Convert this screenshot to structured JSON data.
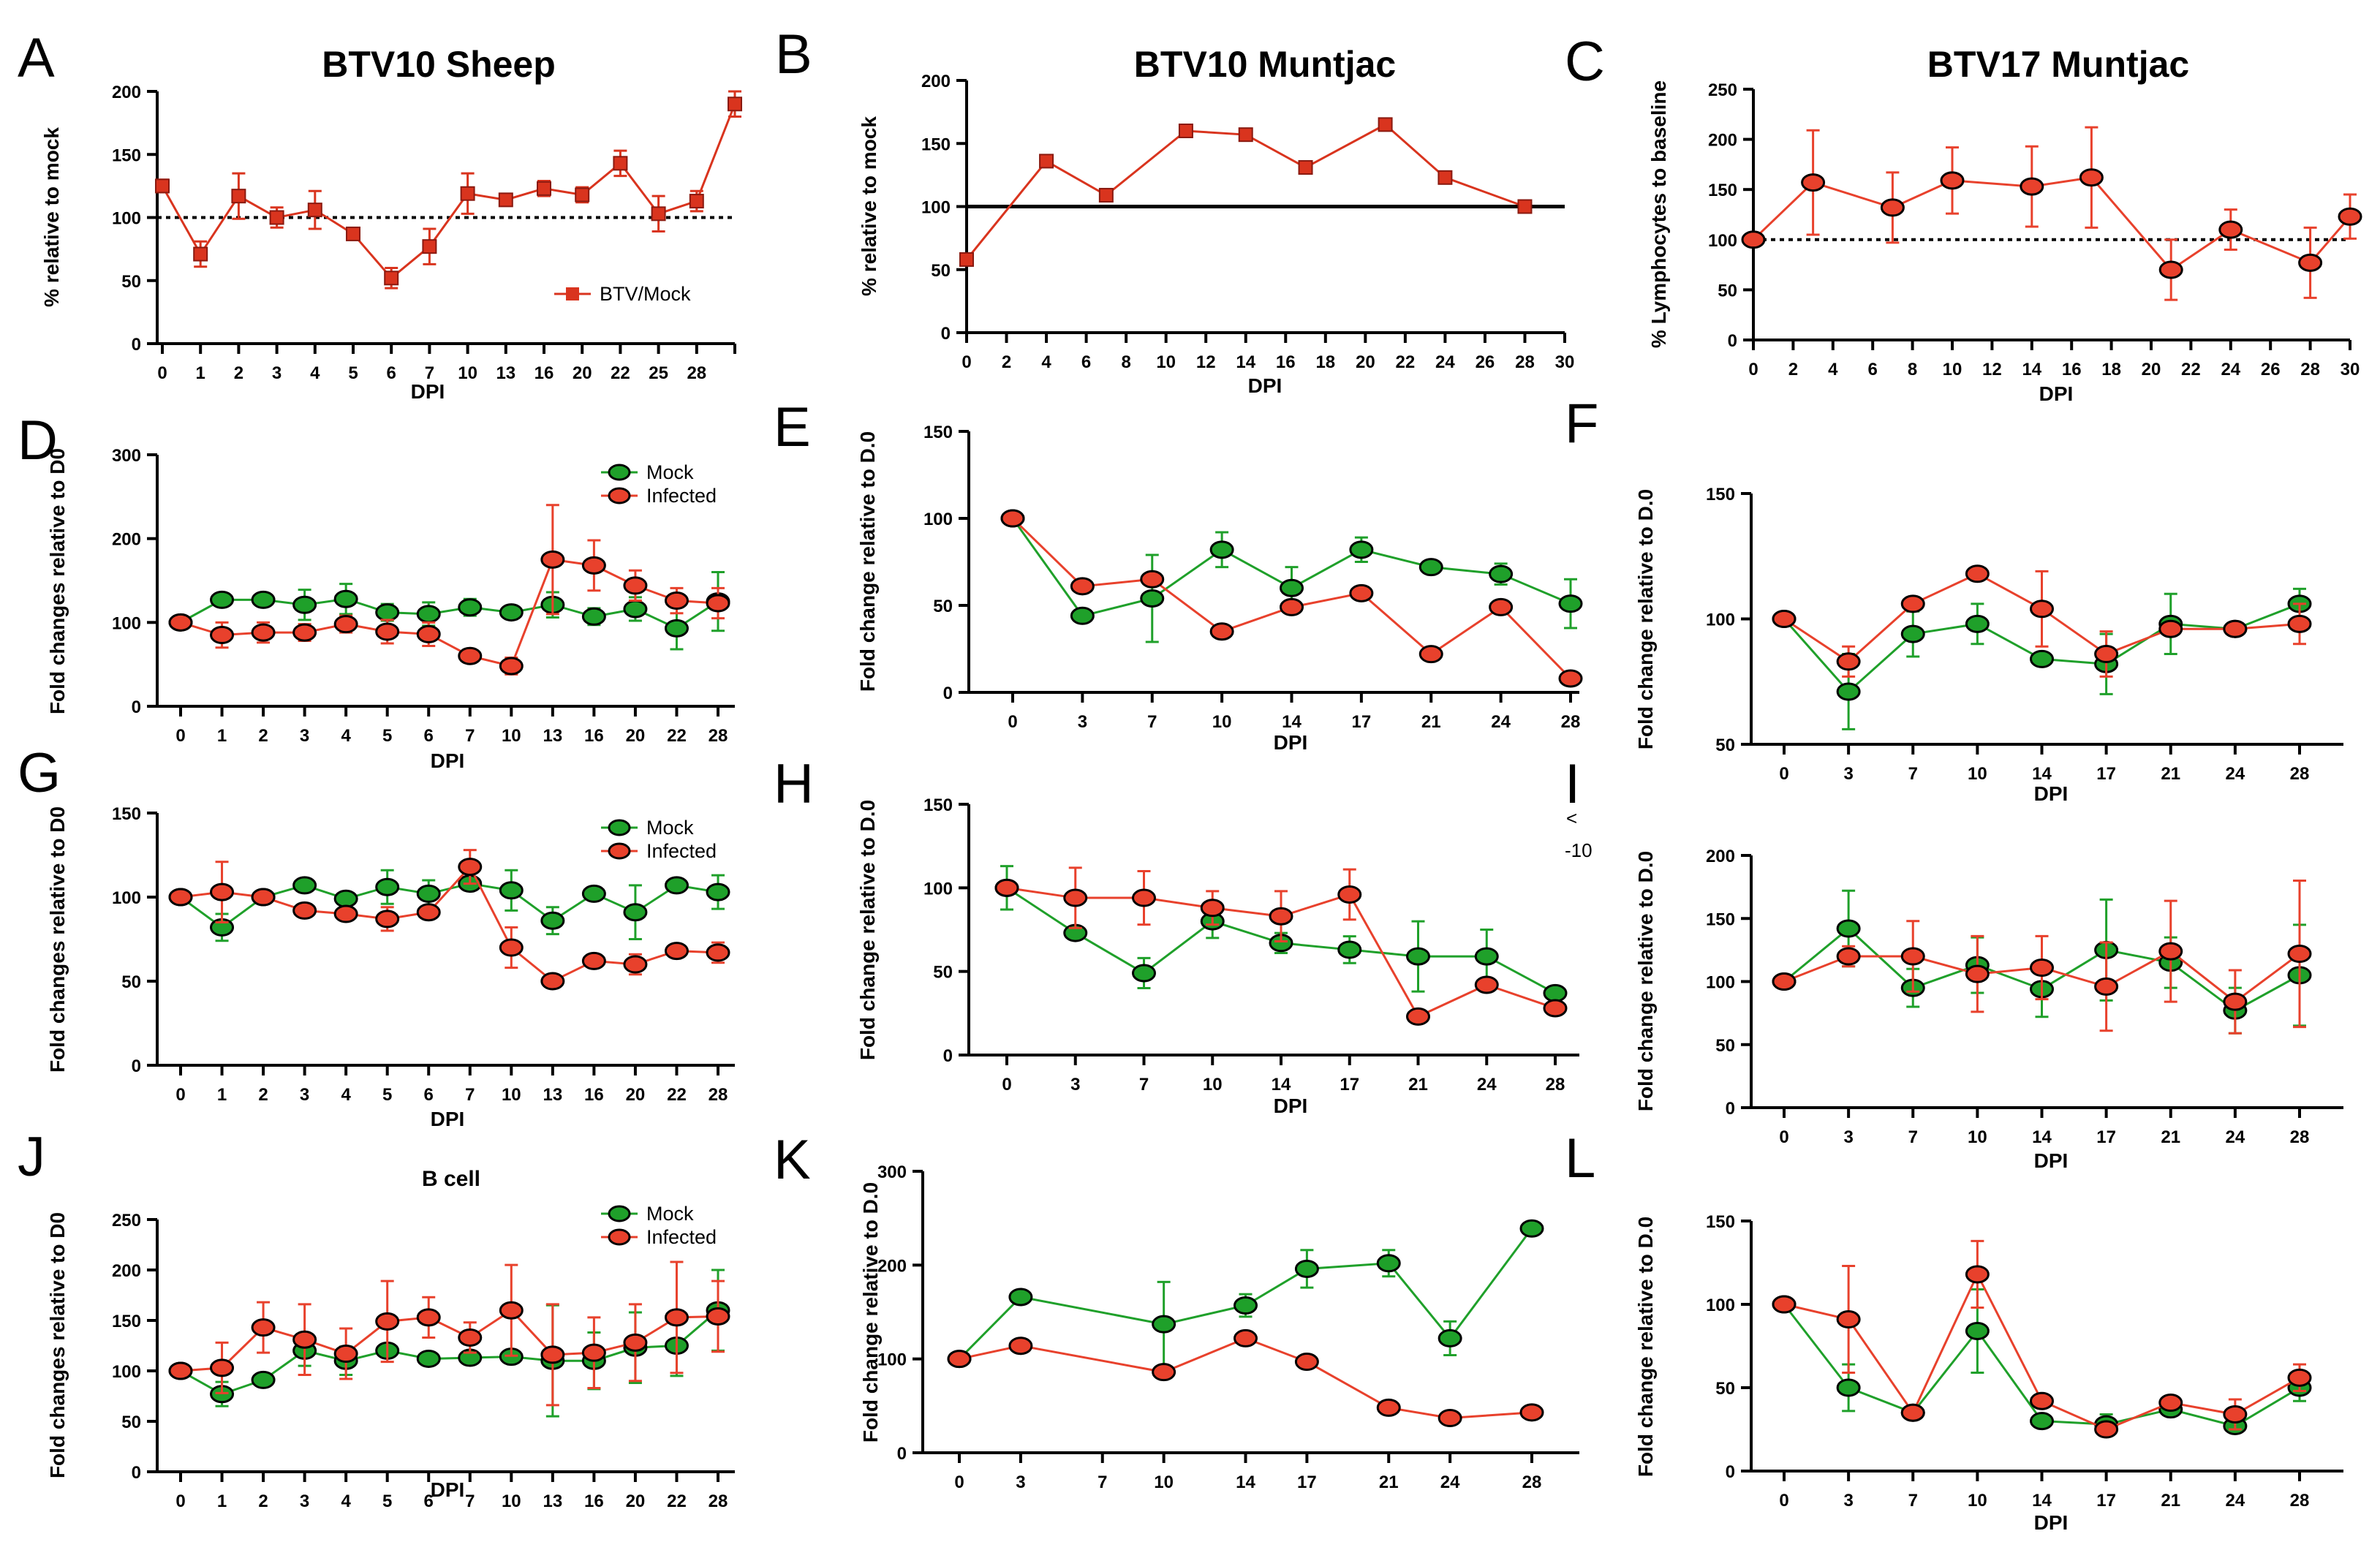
{
  "colors": {
    "infected": "#e8412c",
    "mock": "#1fa02a",
    "sheep_red": "#d9341e",
    "axis": "#000000",
    "ref_line": "#000000"
  },
  "charts": [
    {
      "panel": "A",
      "title": "BTV10 Sheep",
      "subtitle": "",
      "xlabel": "DPI",
      "ylabel": "% relative to mock",
      "x_mode": "category",
      "categories": [
        "0",
        "1",
        "2",
        "3",
        "4",
        "5",
        "6",
        "7",
        "10",
        "13",
        "16",
        "20",
        "22",
        "25",
        "28",
        ""
      ],
      "ylim": [
        0,
        200
      ],
      "yticks": [
        0,
        50,
        100,
        150,
        200
      ],
      "ref_line": {
        "y": 100,
        "style": "dotted"
      },
      "legend": [
        {
          "label": "BTV/Mock",
          "color_key": "sheep_red",
          "marker": "square"
        }
      ],
      "series": [
        {
          "name": "BTV/Mock",
          "color_key": "sheep_red",
          "marker": "square",
          "values": [
            125,
            71,
            117,
            100,
            106,
            87,
            52,
            77,
            119,
            114,
            123,
            118,
            143,
            103,
            113,
            190
          ],
          "errors": [
            5,
            10,
            18,
            8,
            15,
            4,
            8,
            14,
            16,
            4,
            6,
            6,
            10,
            14,
            8,
            10
          ]
        }
      ]
    },
    {
      "panel": "B",
      "title": "BTV10 Muntjac",
      "subtitle": "",
      "xlabel": "DPI",
      "ylabel": "% relative to mock",
      "x_mode": "numeric",
      "xlim": [
        0,
        30
      ],
      "xticks": [
        0,
        2,
        4,
        6,
        8,
        10,
        12,
        14,
        16,
        18,
        20,
        22,
        24,
        26,
        28,
        30
      ],
      "ylim": [
        0,
        200
      ],
      "yticks": [
        0,
        50,
        100,
        150,
        200
      ],
      "ref_line": {
        "y": 100,
        "style": "solid"
      },
      "legend": [],
      "series": [
        {
          "name": "BTV10",
          "color_key": "sheep_red",
          "marker": "square",
          "x": [
            0,
            4,
            7,
            11,
            14,
            17,
            21,
            24,
            28
          ],
          "values": [
            58,
            136,
            109,
            160,
            157,
            131,
            165,
            123,
            100
          ],
          "errors": [
            0,
            0,
            0,
            0,
            0,
            0,
            0,
            0,
            0
          ]
        }
      ]
    },
    {
      "panel": "C",
      "title": "BTV17 Muntjac",
      "subtitle": "",
      "xlabel": "DPI",
      "ylabel": "% Lymphocytes  to baseline",
      "x_mode": "numeric",
      "xlim": [
        0,
        30
      ],
      "xticks": [
        0,
        2,
        4,
        6,
        8,
        10,
        12,
        14,
        16,
        18,
        20,
        22,
        24,
        26,
        28,
        30
      ],
      "ylim": [
        0,
        250
      ],
      "yticks": [
        0,
        50,
        100,
        150,
        200,
        250
      ],
      "ref_line": {
        "y": 100,
        "style": "dotted"
      },
      "legend": [],
      "series": [
        {
          "name": "BTV17",
          "color_key": "infected",
          "marker": "circle",
          "x": [
            0,
            3,
            7,
            10,
            14,
            17,
            21,
            24,
            28,
            30
          ],
          "values": [
            100,
            157,
            132,
            159,
            153,
            162,
            70,
            110,
            77,
            123
          ],
          "errors": [
            0,
            52,
            35,
            33,
            40,
            50,
            30,
            20,
            35,
            22
          ]
        }
      ]
    },
    {
      "panel": "D",
      "title": "",
      "subtitle": "",
      "xlabel": "DPI",
      "ylabel": "Fold changes relative to D0",
      "x_mode": "category",
      "categories": [
        "0",
        "1",
        "2",
        "3",
        "4",
        "5",
        "6",
        "7",
        "10",
        "13",
        "16",
        "20",
        "22",
        "28"
      ],
      "ylim": [
        0,
        300
      ],
      "yticks": [
        0,
        100,
        200,
        300
      ],
      "ref_line": null,
      "legend": [
        {
          "label": "Mock",
          "color_key": "mock",
          "marker": "circle"
        },
        {
          "label": "Infected",
          "color_key": "infected",
          "marker": "circle"
        }
      ],
      "series": [
        {
          "name": "Mock",
          "color_key": "mock",
          "marker": "circle",
          "values": [
            100,
            127,
            127,
            121,
            128,
            112,
            110,
            118,
            112,
            121,
            107,
            116,
            93,
            125
          ],
          "errors": [
            0,
            0,
            0,
            18,
            18,
            10,
            14,
            10,
            8,
            15,
            10,
            14,
            25,
            35
          ]
        },
        {
          "name": "Infected",
          "color_key": "infected",
          "marker": "circle",
          "values": [
            100,
            85,
            88,
            88,
            98,
            89,
            86,
            60,
            48,
            175,
            168,
            144,
            126,
            123
          ],
          "errors": [
            0,
            15,
            12,
            10,
            10,
            14,
            14,
            8,
            10,
            65,
            30,
            18,
            15,
            18
          ]
        }
      ]
    },
    {
      "panel": "E",
      "title": "",
      "subtitle": "",
      "xlabel": "DPI",
      "ylabel": "Fold change relative to D.0",
      "x_mode": "category",
      "categories": [
        "0",
        "3",
        "7",
        "10",
        "14",
        "17",
        "21",
        "24",
        "28"
      ],
      "ylim": [
        0,
        150
      ],
      "yticks": [
        0,
        50,
        100,
        150
      ],
      "ref_line": null,
      "legend": [],
      "series": [
        {
          "name": "Mock",
          "color_key": "mock",
          "marker": "circle",
          "values": [
            100,
            44,
            54,
            82,
            60,
            82,
            72,
            68,
            51
          ],
          "errors": [
            0,
            0,
            25,
            10,
            12,
            7,
            0,
            6,
            14
          ]
        },
        {
          "name": "Infected",
          "color_key": "infected",
          "marker": "circle",
          "values": [
            100,
            61,
            65,
            35,
            49,
            57,
            22,
            49,
            8
          ],
          "errors": [
            0,
            0,
            0,
            0,
            0,
            0,
            0,
            0,
            0
          ]
        }
      ]
    },
    {
      "panel": "F",
      "title": "",
      "subtitle": "",
      "xlabel": "DPI",
      "ylabel": "Fold change relative to D.0",
      "x_mode": "category",
      "categories": [
        "0",
        "3",
        "7",
        "10",
        "14",
        "17",
        "21",
        "24",
        "28"
      ],
      "ylim": [
        50,
        150
      ],
      "yticks": [
        50,
        100,
        150
      ],
      "ref_line": null,
      "legend": [],
      "series": [
        {
          "name": "Mock",
          "color_key": "mock",
          "marker": "circle",
          "values": [
            100,
            71,
            94,
            98,
            84,
            82,
            98,
            96,
            106
          ],
          "errors": [
            0,
            15,
            9,
            8,
            0,
            12,
            12,
            0,
            6
          ]
        },
        {
          "name": "Infected",
          "color_key": "infected",
          "marker": "circle",
          "values": [
            100,
            83,
            106,
            118,
            104,
            86,
            96,
            96,
            98
          ],
          "errors": [
            0,
            6,
            0,
            0,
            15,
            9,
            0,
            0,
            8
          ]
        }
      ]
    },
    {
      "panel": "G",
      "title": "",
      "subtitle": "",
      "xlabel": "DPI",
      "ylabel": "Fold changes relative to D0",
      "x_mode": "category",
      "categories": [
        "0",
        "1",
        "2",
        "3",
        "4",
        "5",
        "6",
        "7",
        "10",
        "13",
        "16",
        "20",
        "22",
        "28"
      ],
      "ylim": [
        0,
        150
      ],
      "yticks": [
        0,
        50,
        100,
        150
      ],
      "ref_line": null,
      "legend": [
        {
          "label": "Mock",
          "color_key": "mock",
          "marker": "circle"
        },
        {
          "label": "Infected",
          "color_key": "infected",
          "marker": "circle"
        }
      ],
      "series": [
        {
          "name": "Mock",
          "color_key": "mock",
          "marker": "circle",
          "values": [
            100,
            82,
            100,
            107,
            99,
            106,
            102,
            108,
            104,
            86,
            102,
            91,
            107,
            103
          ],
          "errors": [
            0,
            8,
            0,
            0,
            0,
            10,
            8,
            0,
            12,
            8,
            0,
            16,
            0,
            10
          ]
        },
        {
          "name": "Infected",
          "color_key": "infected",
          "marker": "circle",
          "values": [
            100,
            103,
            100,
            92,
            90,
            87,
            91,
            118,
            70,
            50,
            62,
            60,
            68,
            67
          ],
          "errors": [
            0,
            18,
            0,
            0,
            0,
            7,
            0,
            10,
            12,
            0,
            0,
            6,
            0,
            6
          ]
        }
      ]
    },
    {
      "panel": "H",
      "title": "",
      "subtitle": "",
      "xlabel": "DPI",
      "ylabel": "Fold change relative to D.0",
      "x_mode": "category",
      "categories": [
        "0",
        "3",
        "7",
        "10",
        "14",
        "17",
        "21",
        "24",
        "28"
      ],
      "ylim": [
        0,
        150
      ],
      "yticks": [
        0,
        50,
        100,
        150
      ],
      "ref_line": null,
      "legend": [],
      "series": [
        {
          "name": "Mock",
          "color_key": "mock",
          "marker": "circle",
          "values": [
            100,
            73,
            49,
            80,
            67,
            63,
            59,
            59,
            37
          ],
          "errors": [
            13,
            0,
            9,
            10,
            6,
            8,
            21,
            16,
            0
          ]
        },
        {
          "name": "Infected",
          "color_key": "infected",
          "marker": "circle",
          "values": [
            100,
            94,
            94,
            88,
            83,
            96,
            23,
            42,
            28
          ],
          "errors": [
            0,
            18,
            16,
            10,
            15,
            15,
            0,
            0,
            0
          ]
        }
      ]
    },
    {
      "panel": "I",
      "title": "",
      "subtitle": "",
      "xlabel": "DPI",
      "ylabel": "Fold change relative to D.0",
      "x_mode": "category",
      "categories": [
        "0",
        "3",
        "7",
        "10",
        "14",
        "17",
        "21",
        "24",
        "28"
      ],
      "ylim": [
        0,
        200
      ],
      "yticks": [
        0,
        50,
        100,
        150,
        200
      ],
      "ref_line": null,
      "legend": [],
      "series": [
        {
          "name": "Mock",
          "color_key": "mock",
          "marker": "circle",
          "values": [
            100,
            142,
            95,
            113,
            94,
            125,
            115,
            77,
            105
          ],
          "errors": [
            0,
            30,
            15,
            22,
            22,
            40,
            20,
            18,
            40
          ]
        },
        {
          "name": "Infected",
          "color_key": "infected",
          "marker": "circle",
          "values": [
            100,
            120,
            120,
            106,
            111,
            96,
            124,
            84,
            122
          ],
          "errors": [
            0,
            8,
            28,
            30,
            25,
            35,
            40,
            25,
            58
          ]
        }
      ]
    },
    {
      "panel": "J",
      "title": "",
      "subtitle": "B cell",
      "xlabel": "DPI",
      "ylabel": "Fold changes relative to D0",
      "x_mode": "category",
      "categories": [
        "0",
        "1",
        "2",
        "3",
        "4",
        "5",
        "6",
        "7",
        "10",
        "13",
        "16",
        "20",
        "22",
        "28"
      ],
      "ylim": [
        0,
        250
      ],
      "yticks": [
        0,
        50,
        100,
        150,
        200,
        250
      ],
      "ref_line": null,
      "legend": [
        {
          "label": "Mock",
          "color_key": "mock",
          "marker": "circle"
        },
        {
          "label": "Infected",
          "color_key": "infected",
          "marker": "circle"
        }
      ],
      "series": [
        {
          "name": "Mock",
          "color_key": "mock",
          "marker": "circle",
          "values": [
            100,
            77,
            91,
            120,
            110,
            120,
            112,
            113,
            114,
            110,
            110,
            123,
            125,
            160
          ],
          "errors": [
            0,
            12,
            0,
            15,
            14,
            0,
            0,
            0,
            0,
            55,
            28,
            35,
            30,
            40
          ]
        },
        {
          "name": "Infected",
          "color_key": "infected",
          "marker": "circle",
          "values": [
            100,
            103,
            143,
            131,
            117,
            149,
            153,
            133,
            160,
            116,
            118,
            128,
            153,
            154
          ],
          "errors": [
            0,
            25,
            25,
            35,
            25,
            40,
            20,
            15,
            45,
            50,
            35,
            38,
            55,
            35
          ]
        }
      ]
    },
    {
      "panel": "K",
      "title": "",
      "subtitle": "",
      "xlabel": "",
      "ylabel": "Fold change relative to D.0",
      "x_mode": "numeric",
      "xlim": [
        0,
        28
      ],
      "xticks": [
        0,
        3,
        7,
        10,
        14,
        17,
        21,
        24,
        28
      ],
      "ylim": [
        0,
        300
      ],
      "yticks": [
        0,
        100,
        200,
        300
      ],
      "ref_line": null,
      "legend": [],
      "series": [
        {
          "name": "Mock",
          "color_key": "mock",
          "marker": "circle",
          "x": [
            0,
            3,
            10,
            14,
            17,
            21,
            24,
            28
          ],
          "values": [
            100,
            166,
            137,
            157,
            196,
            202,
            122,
            239
          ],
          "errors": [
            0,
            0,
            45,
            12,
            20,
            14,
            18,
            0
          ]
        },
        {
          "name": "Infected",
          "color_key": "infected",
          "marker": "circle",
          "x": [
            0,
            3,
            10,
            14,
            17,
            21,
            24,
            28
          ],
          "values": [
            100,
            114,
            86,
            122,
            97,
            48,
            37,
            43
          ],
          "errors": [
            0,
            0,
            0,
            0,
            0,
            0,
            0,
            0
          ]
        }
      ]
    },
    {
      "panel": "L",
      "title": "",
      "subtitle": "",
      "xlabel": "DPI",
      "ylabel": "Fold change relative to D.0",
      "x_mode": "category",
      "categories": [
        "0",
        "3",
        "7",
        "10",
        "14",
        "17",
        "21",
        "24",
        "28"
      ],
      "ylim": [
        0,
        150
      ],
      "yticks": [
        0,
        50,
        100,
        150
      ],
      "ref_line": null,
      "legend": [],
      "series": [
        {
          "name": "Mock",
          "color_key": "mock",
          "marker": "circle",
          "values": [
            100,
            50,
            35,
            84,
            30,
            28,
            37,
            27,
            50
          ],
          "errors": [
            0,
            14,
            0,
            25,
            0,
            6,
            0,
            0,
            8
          ]
        },
        {
          "name": "Infected",
          "color_key": "infected",
          "marker": "circle",
          "values": [
            100,
            91,
            35,
            118,
            42,
            25,
            41,
            34,
            56
          ],
          "errors": [
            0,
            32,
            0,
            20,
            0,
            0,
            0,
            9,
            8
          ]
        }
      ]
    }
  ],
  "stray_marks": [
    "<",
    "-10"
  ]
}
